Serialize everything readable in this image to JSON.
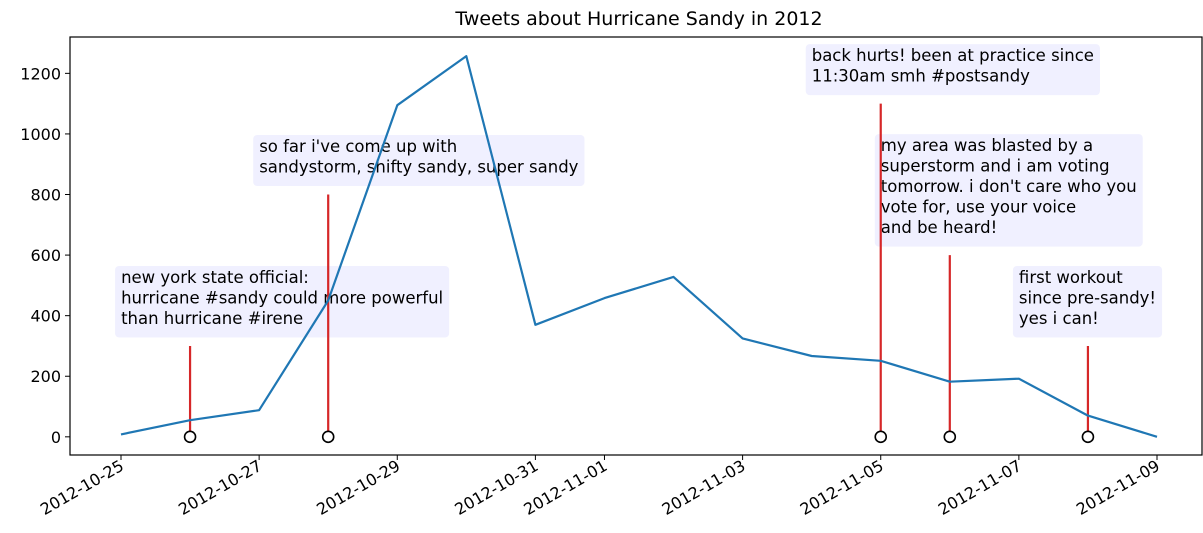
{
  "chart_data": {
    "type": "line",
    "title": "Tweets about Hurricane Sandy in 2012",
    "xlabel": "",
    "ylabel": "",
    "x": [
      "2012-10-25",
      "2012-10-26",
      "2012-10-27",
      "2012-10-28",
      "2012-10-29",
      "2012-10-30",
      "2012-10-31",
      "2012-11-01",
      "2012-11-02",
      "2012-11-03",
      "2012-11-04",
      "2012-11-05",
      "2012-11-06",
      "2012-11-07",
      "2012-11-08",
      "2012-11-09"
    ],
    "values": [
      8,
      55,
      88,
      450,
      1095,
      1257,
      370,
      458,
      528,
      325,
      267,
      251,
      182,
      192,
      70,
      0
    ],
    "xlim": [
      "2012-10-25",
      "2012-11-09"
    ],
    "ylim": [
      -60,
      1320
    ],
    "yticks": [
      0,
      200,
      400,
      600,
      800,
      1000,
      1200
    ],
    "xticks": [
      "2012-10-25",
      "2012-10-27",
      "2012-10-29",
      "2012-10-31",
      "2012-11-01",
      "2012-11-03",
      "2012-11-05",
      "2012-11-07",
      "2012-11-09"
    ],
    "grid": false,
    "colors": {
      "line": "#1f77b4",
      "stem": "#d62728",
      "annotation_bg": "#f0f0ff"
    },
    "annotations": [
      {
        "date": "2012-10-26",
        "stem_top": 300,
        "lines": [
          "new york state official:",
          "hurricane #sandy could more powerful",
          "than hurricane #irene"
        ]
      },
      {
        "date": "2012-10-28",
        "stem_top": 800,
        "lines": [
          "so far i've come up with",
          "sandystorm, shifty sandy, super sandy"
        ]
      },
      {
        "date": "2012-11-05",
        "stem_top": 1100,
        "lines": [
          "back hurts! been at practice since",
          "11:30am smh #postsandy"
        ]
      },
      {
        "date": "2012-11-06",
        "stem_top": 600,
        "lines": [
          "my area was blasted by a",
          "superstorm and i am voting",
          "tomorrow. i don't care who you",
          "vote for, use your voice",
          "and be heard!"
        ]
      },
      {
        "date": "2012-11-08",
        "stem_top": 300,
        "lines": [
          "first workout",
          "since pre-sandy!",
          "yes i can!"
        ]
      }
    ]
  }
}
